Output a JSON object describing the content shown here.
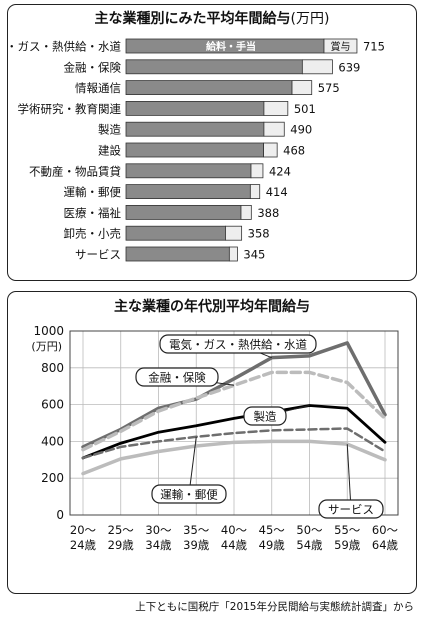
{
  "top": {
    "title": "主な業種別にみた平均年間給与",
    "unit": "(万円)",
    "inbar_labels": {
      "salary": "給料・手当",
      "bonus": "賞与"
    }
  },
  "bottom": {
    "title": "主な業種の年代別平均年間給与",
    "y_unit": "(万円)"
  },
  "source_note": "上下ともに国税庁「2015年分民間給与実態統計調査」から",
  "colors": {
    "salary_bar": "#8a8a8a",
    "bonus_bar": "#eeeeee",
    "frame": "#222222"
  },
  "chart_data": [
    {
      "type": "bar",
      "orientation": "horizontal",
      "stacked": true,
      "title": "主な業種別にみた平均年間給与(万円)",
      "categories": [
        "電気・ガス・熱供給・水道",
        "金融・保険",
        "情報通信",
        "学術研究・教育関連",
        "製造",
        "建設",
        "不動産・物品賃貸",
        "運輸・郵便",
        "医療・福祉",
        "卸売・小売",
        "サービス"
      ],
      "series": [
        {
          "name": "給料・手当",
          "values": [
            613,
            546,
            514,
            427,
            427,
            426,
            387,
            385,
            356,
            308,
            320
          ]
        },
        {
          "name": "賞与",
          "values": [
            102,
            93,
            61,
            74,
            63,
            42,
            37,
            29,
            32,
            50,
            25
          ]
        }
      ],
      "totals": [
        715,
        639,
        575,
        501,
        490,
        468,
        424,
        414,
        388,
        358,
        345
      ],
      "xlim": [
        0,
        800
      ]
    },
    {
      "type": "line",
      "title": "主な業種の年代別平均年間給与",
      "ylabel": "(万円)",
      "categories": [
        "20〜24歳",
        "25〜29歳",
        "30〜34歳",
        "35〜39歳",
        "40〜44歳",
        "45〜49歳",
        "50〜54歳",
        "55〜59歳",
        "60〜64歳"
      ],
      "category_lines": [
        [
          "20〜",
          "24歳"
        ],
        [
          "25〜",
          "29歳"
        ],
        [
          "30〜",
          "34歳"
        ],
        [
          "35〜",
          "39歳"
        ],
        [
          "40〜",
          "44歳"
        ],
        [
          "45〜",
          "49歳"
        ],
        [
          "50〜",
          "54歳"
        ],
        [
          "55〜",
          "59歳"
        ],
        [
          "60〜",
          "64歳"
        ]
      ],
      "yticks": [
        "1000",
        "800",
        "600",
        "400",
        "200",
        "0"
      ],
      "ylim": [
        0,
        1000
      ],
      "grid": true,
      "series": [
        {
          "name": "電気・ガス・熱供給・水道",
          "values": [
            370,
            465,
            580,
            630,
            740,
            855,
            865,
            935,
            545
          ],
          "color": "#6e6e6e",
          "dash": "",
          "width": 3.5
        },
        {
          "name": "金融・保険",
          "values": [
            355,
            455,
            565,
            635,
            705,
            775,
            775,
            720,
            525
          ],
          "color": "#bcbcbc",
          "dash": "9,5",
          "width": 3.5
        },
        {
          "name": "製造",
          "values": [
            310,
            390,
            450,
            485,
            525,
            560,
            595,
            580,
            395
          ],
          "color": "#000000",
          "dash": "",
          "width": 2.8
        },
        {
          "name": "運輸・郵便",
          "values": [
            310,
            370,
            400,
            425,
            445,
            460,
            465,
            470,
            345
          ],
          "color": "#6e6e6e",
          "dash": "8,4",
          "width": 2.5
        },
        {
          "name": "サービス",
          "values": [
            225,
            305,
            345,
            375,
            395,
            400,
            400,
            385,
            300
          ],
          "color": "#bcbcbc",
          "dash": "",
          "width": 3.5
        }
      ]
    }
  ]
}
